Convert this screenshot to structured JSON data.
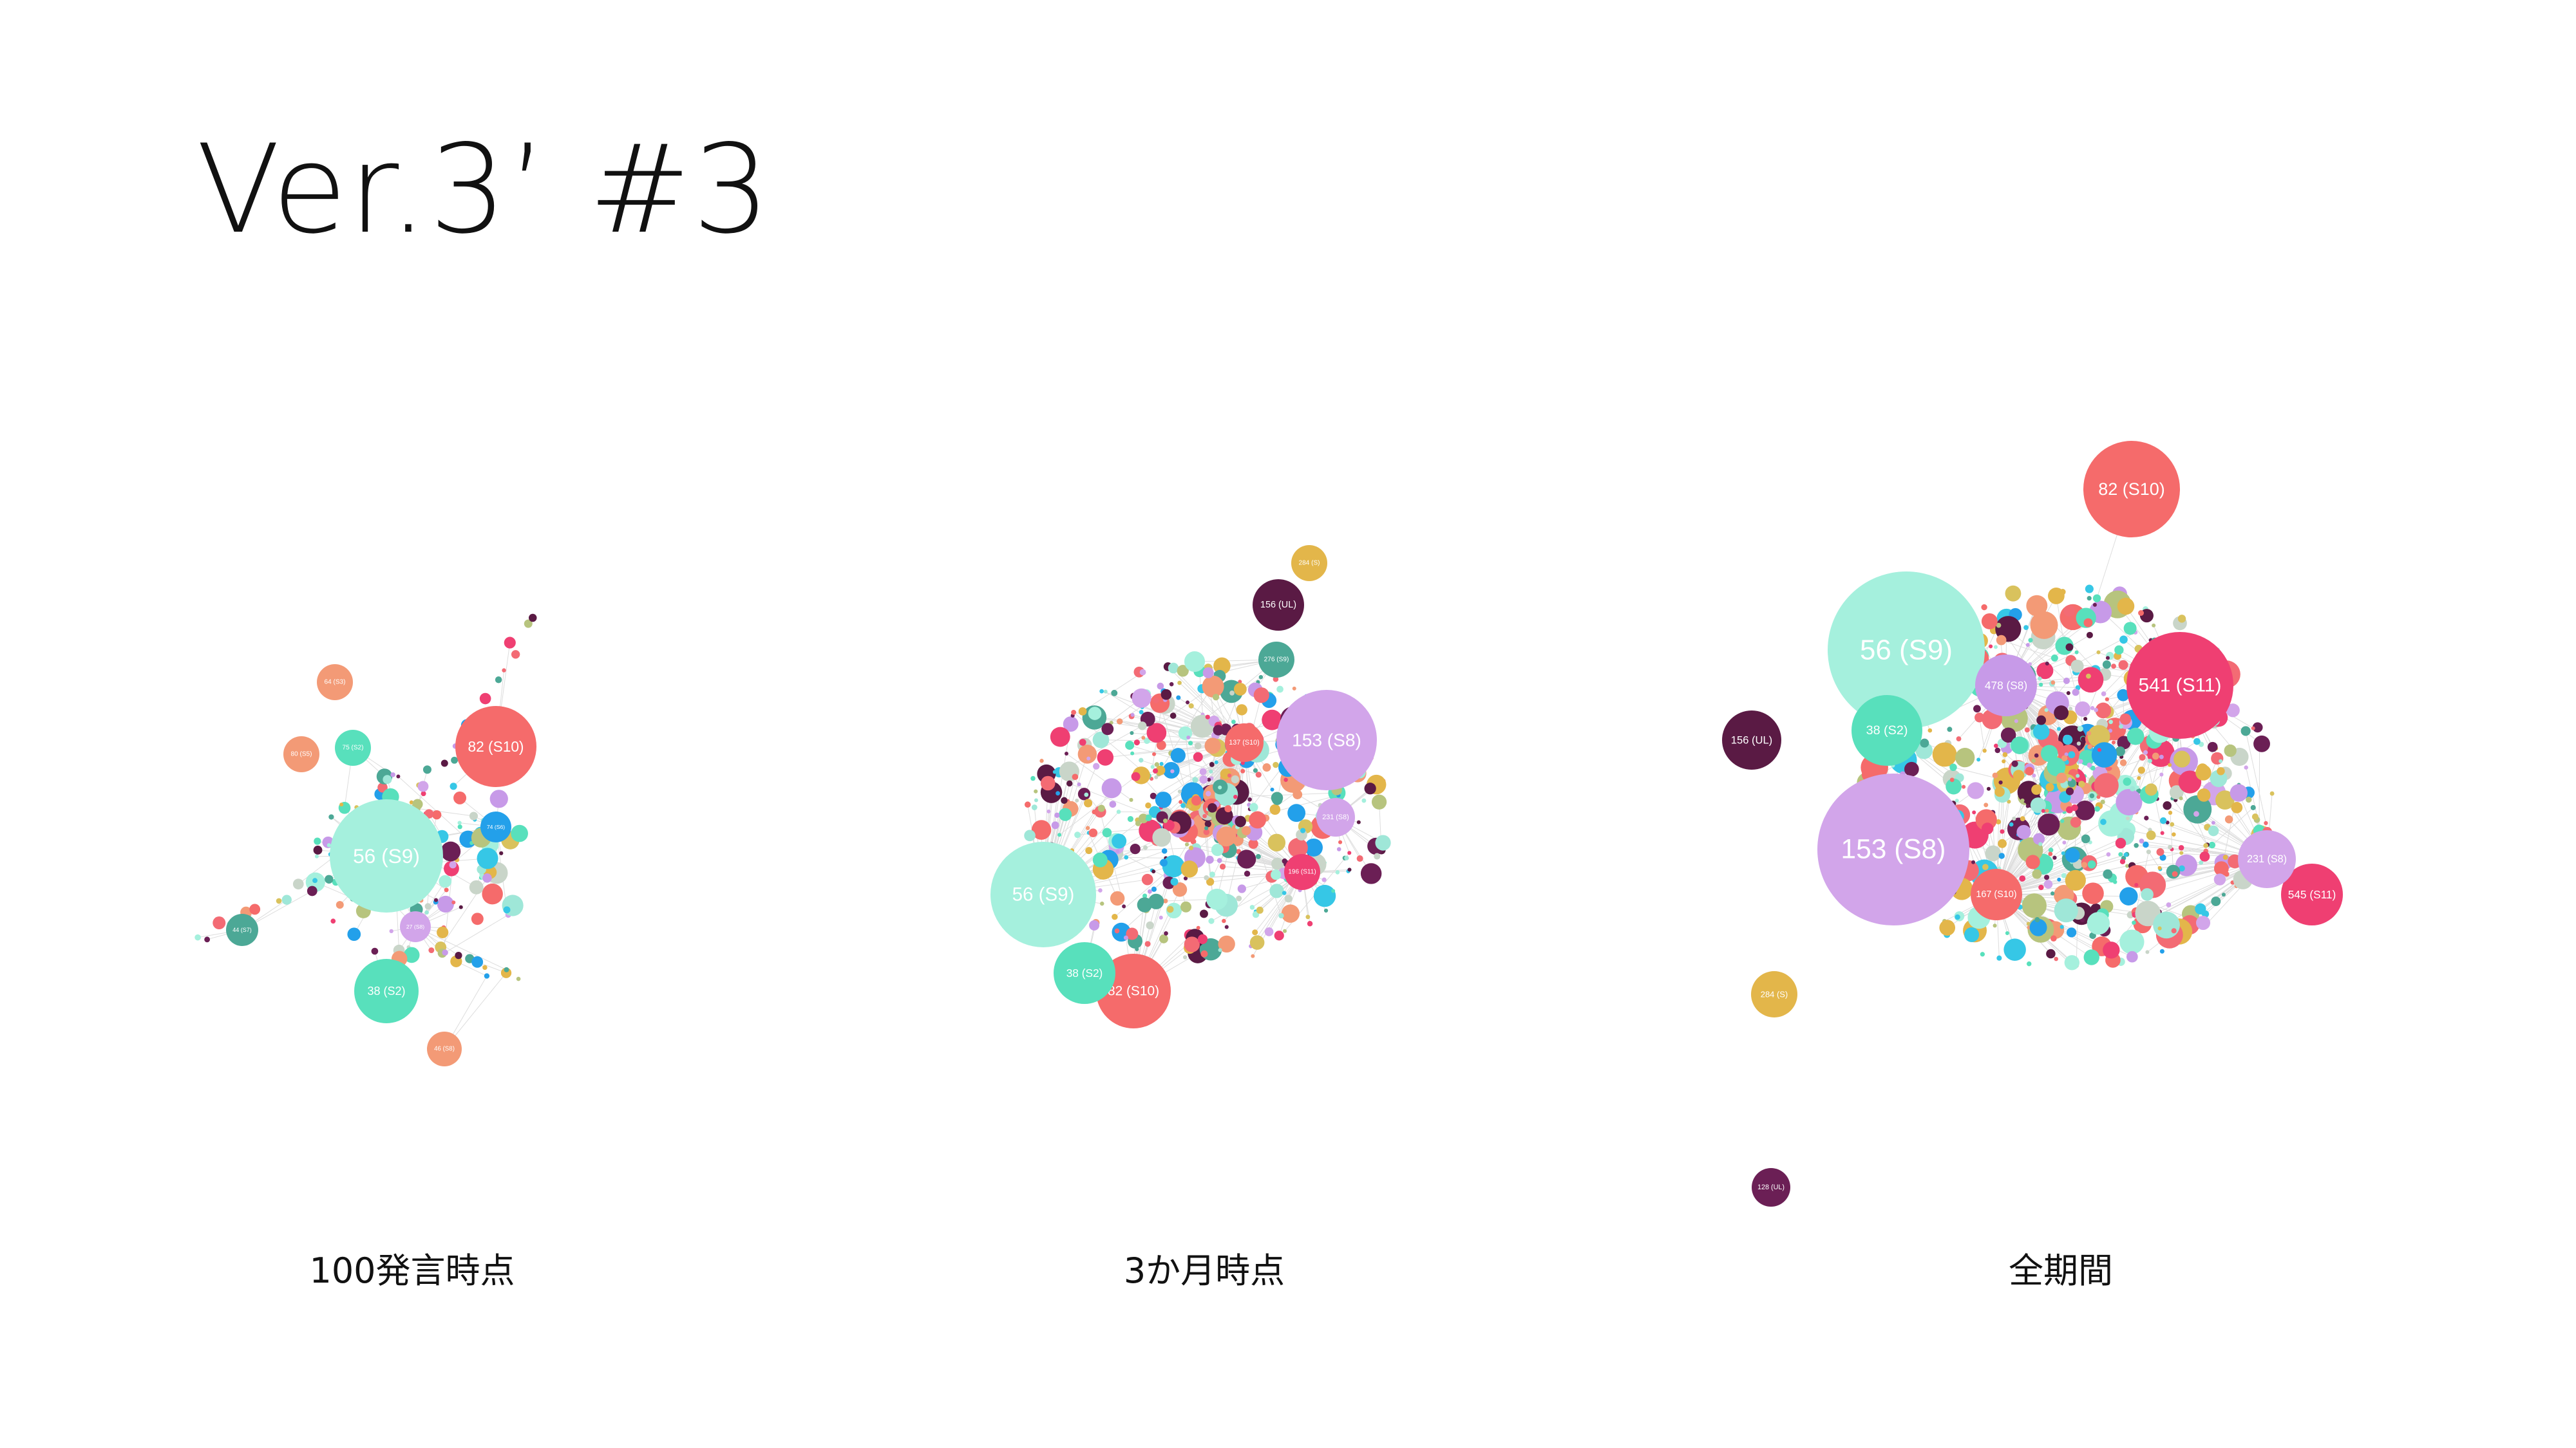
{
  "title": "Ver.3’ #3",
  "palette": [
    "#f56b6b",
    "#f39a76",
    "#f36b74",
    "#ef3f72",
    "#a5f0dd",
    "#58e0bc",
    "#4ca896",
    "#d2a5ea",
    "#c79ae8",
    "#e3b64a",
    "#d9c25d",
    "#5a1a44",
    "#6b1f55",
    "#23a0ea",
    "#36c7e6",
    "#b7c47e",
    "#c9d5c9",
    "#9fe7d8"
  ],
  "edge_color": "#dddddd",
  "graphs": [
    {
      "caption": "100発言時点",
      "nodes": [
        {
          "label": "56 (S9)",
          "color": "#a5f0dd"
        },
        {
          "label": "82 (S10)",
          "color": "#f56b6b"
        },
        {
          "label": "38 (S2)",
          "color": "#58e0bc"
        },
        {
          "label": "64 (S3)",
          "color": "#f39a76"
        },
        {
          "label": "75 (S2)",
          "color": "#58e0bc"
        },
        {
          "label": "80 (S5)",
          "color": "#f39a76"
        },
        {
          "label": "74 (S6)",
          "color": "#23a0ea"
        },
        {
          "label": "27 (S8)",
          "color": "#d2a5ea"
        },
        {
          "label": "44 (S7)",
          "color": "#4ca896"
        },
        {
          "label": "46 (S8)",
          "color": "#f39a76"
        }
      ]
    },
    {
      "caption": "3か月時点",
      "nodes": [
        {
          "label": "56 (S9)",
          "color": "#a5f0dd"
        },
        {
          "label": "153 (S8)",
          "color": "#d2a5ea"
        },
        {
          "label": "82 (S10)",
          "color": "#f56b6b"
        },
        {
          "label": "38 (S2)",
          "color": "#58e0bc"
        },
        {
          "label": "156 (UL)",
          "color": "#5a1a44"
        },
        {
          "label": "284 (S)",
          "color": "#e3b64a"
        },
        {
          "label": "276 (S9)",
          "color": "#4ca896"
        },
        {
          "label": "231 (S8)",
          "color": "#d2a5ea"
        },
        {
          "label": "196 (S11)",
          "color": "#ef3f72"
        },
        {
          "label": "137 (S10)",
          "color": "#f56b6b"
        }
      ]
    },
    {
      "caption": "全期間",
      "nodes": [
        {
          "label": "56 (S9)",
          "color": "#a5f0dd"
        },
        {
          "label": "153 (S8)",
          "color": "#d2a5ea"
        },
        {
          "label": "541 (S11)",
          "color": "#ef3f72"
        },
        {
          "label": "82 (S10)",
          "color": "#f56b6b"
        },
        {
          "label": "38 (S2)",
          "color": "#58e0bc"
        },
        {
          "label": "545 (S11)",
          "color": "#ef3f72"
        },
        {
          "label": "478 (S8)",
          "color": "#c79ae8"
        },
        {
          "label": "231 (S8)",
          "color": "#d2a5ea"
        },
        {
          "label": "156 (UL)",
          "color": "#5a1a44"
        },
        {
          "label": "167 (S10)",
          "color": "#f56b6b"
        },
        {
          "label": "284 (S)",
          "color": "#e3b64a"
        },
        {
          "label": "128 (UL)",
          "color": "#6b1f55"
        }
      ]
    }
  ]
}
